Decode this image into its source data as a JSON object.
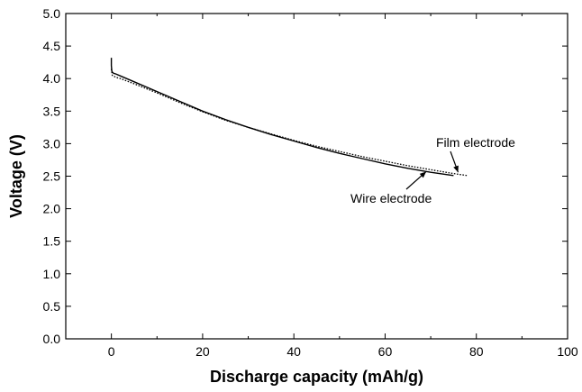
{
  "chart_data": {
    "type": "line",
    "title": "",
    "xlabel": "Discharge capacity (mAh/g)",
    "ylabel": "Voltage (V)",
    "xlim": [
      -10,
      100
    ],
    "ylim": [
      0,
      5
    ],
    "xticks": [
      0,
      20,
      40,
      60,
      80,
      100
    ],
    "xtick_labels": [
      "0",
      "20",
      "40",
      "60",
      "80",
      "100"
    ],
    "x_minor_step": 10,
    "yticks": [
      0,
      0.5,
      1.0,
      1.5,
      2.0,
      2.5,
      3.0,
      3.5,
      4.0,
      4.5,
      5.0
    ],
    "ytick_labels": [
      "0.0",
      "0.5",
      "1.0",
      "1.5",
      "2.0",
      "2.5",
      "3.0",
      "3.5",
      "4.0",
      "4.5",
      "5.0"
    ],
    "grid": false,
    "legend": "none",
    "series": [
      {
        "name": "Wire electrode",
        "style": "solid",
        "color": "#000000",
        "x": [
          0,
          0,
          0.1,
          0.2,
          0.5,
          1,
          2,
          5,
          10,
          15,
          20,
          25,
          30,
          35,
          40,
          45,
          50,
          55,
          60,
          65,
          70,
          75
        ],
        "y": [
          4.32,
          4.2,
          4.12,
          4.1,
          4.08,
          4.07,
          4.04,
          3.95,
          3.8,
          3.65,
          3.5,
          3.37,
          3.25,
          3.14,
          3.04,
          2.94,
          2.85,
          2.77,
          2.69,
          2.62,
          2.56,
          2.51
        ]
      },
      {
        "name": "Film electrode",
        "style": "dotted",
        "color": "#000000",
        "x": [
          0,
          0.2,
          1,
          2,
          5,
          10,
          15,
          20,
          25,
          30,
          35,
          40,
          45,
          50,
          55,
          60,
          65,
          70,
          75,
          78
        ],
        "y": [
          4.15,
          4.05,
          4.02,
          4.0,
          3.92,
          3.78,
          3.63,
          3.49,
          3.36,
          3.25,
          3.15,
          3.05,
          2.96,
          2.88,
          2.8,
          2.73,
          2.66,
          2.6,
          2.54,
          2.51
        ]
      }
    ],
    "annotations": [
      {
        "text": "Film electrode",
        "target_series": "Film electrode",
        "arrow_to": [
          76,
          2.56
        ]
      },
      {
        "text": "Wire electrode",
        "target_series": "Wire electrode",
        "arrow_to": [
          69,
          2.57
        ]
      }
    ]
  }
}
